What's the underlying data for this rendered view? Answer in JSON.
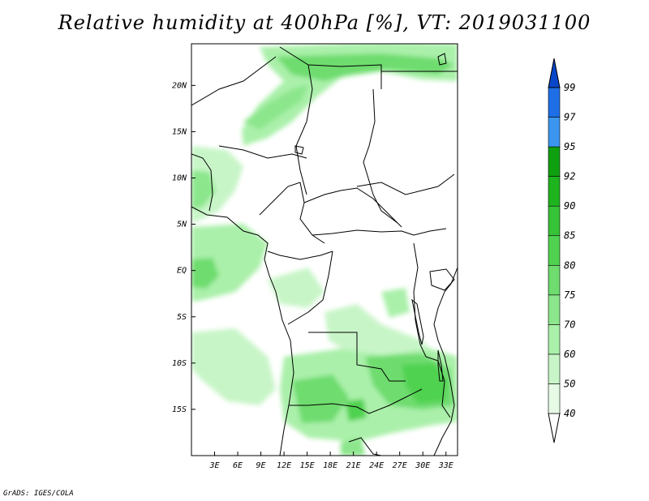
{
  "title": "Relative humidity at 400hPa [%], VT: 2019031100",
  "map": {
    "projection": "lat-lon",
    "lon_range": [
      0,
      34.5
    ],
    "lat_range": [
      -20,
      24.5
    ],
    "field": "relative_humidity_400hPa",
    "units": "%",
    "x_ticks": [
      "3E",
      "6E",
      "9E",
      "12E",
      "15E",
      "18E",
      "21E",
      "24E",
      "27E",
      "30E",
      "33E"
    ],
    "y_ticks": [
      "20N",
      "15N",
      "10N",
      "5N",
      "EQ",
      "5S",
      "10S",
      "15S"
    ]
  },
  "colorbar": {
    "levels": [
      "40",
      "50",
      "60",
      "70",
      "75",
      "80",
      "85",
      "90",
      "92",
      "95",
      "97",
      "99"
    ],
    "colors": [
      "#ffffff",
      "#e6fae6",
      "#c8f5c8",
      "#aaf0aa",
      "#8ce68c",
      "#6edc6e",
      "#50d250",
      "#37c337",
      "#1eb41e",
      "#0fa00f",
      "#3c96f0",
      "#1e6ee6",
      "#0a46c8"
    ]
  },
  "credit": "GrADS: IGES/COLA"
}
